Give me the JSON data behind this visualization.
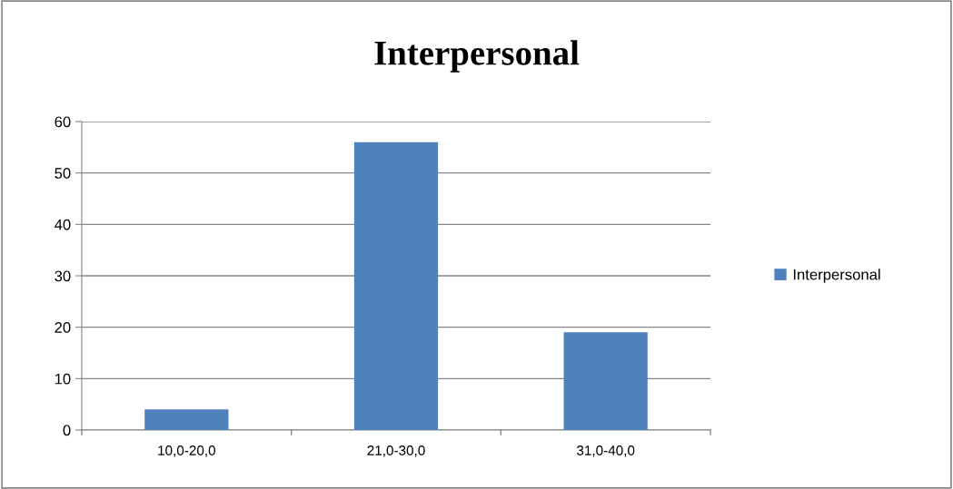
{
  "chart_data": {
    "type": "bar",
    "title": "Interpersonal",
    "categories": [
      "10,0-20,0",
      "21,0-30,0",
      "31,0-40,0"
    ],
    "series": [
      {
        "name": "Interpersonal",
        "color": "#4f81bd",
        "values": [
          4,
          56,
          19
        ]
      }
    ],
    "ylim": [
      0,
      60
    ],
    "yticks": [
      0,
      10,
      20,
      30,
      40,
      50,
      60
    ],
    "grid": "y",
    "legend": "right"
  }
}
